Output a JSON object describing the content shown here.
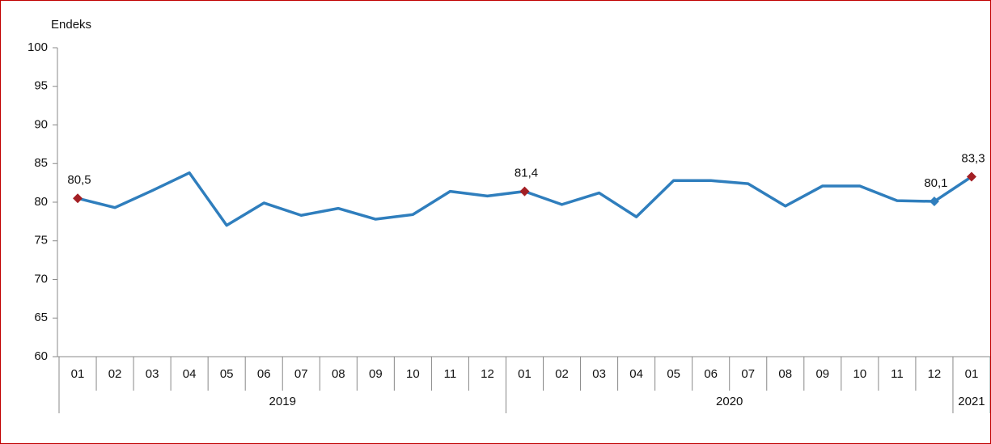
{
  "chart_data": {
    "type": "line",
    "y_axis_label": "Endeks",
    "categories": [
      "01",
      "02",
      "03",
      "04",
      "05",
      "06",
      "07",
      "08",
      "09",
      "10",
      "11",
      "12",
      "01",
      "02",
      "03",
      "04",
      "05",
      "06",
      "07",
      "08",
      "09",
      "10",
      "11",
      "12",
      "01"
    ],
    "x_groups": [
      {
        "label": "2019",
        "count": 12
      },
      {
        "label": "2020",
        "count": 12
      },
      {
        "label": "2021",
        "count": 1
      }
    ],
    "series": [
      {
        "name": "Endeks",
        "color": "#2f7ebd",
        "values": [
          80.5,
          79.3,
          81.5,
          83.8,
          77.0,
          79.9,
          78.3,
          79.2,
          77.8,
          78.4,
          81.4,
          80.8,
          81.4,
          79.7,
          81.2,
          78.1,
          82.8,
          82.8,
          82.4,
          79.5,
          82.1,
          82.1,
          80.2,
          80.1,
          83.3
        ],
        "value_labels": [
          "80,5",
          null,
          null,
          null,
          null,
          null,
          null,
          null,
          null,
          null,
          null,
          null,
          "81,4",
          null,
          null,
          null,
          null,
          null,
          null,
          null,
          null,
          null,
          null,
          "80,1",
          "83,3"
        ],
        "marker_colors": [
          "#a31f24",
          null,
          null,
          null,
          null,
          null,
          null,
          null,
          null,
          null,
          null,
          null,
          "#a31f24",
          null,
          null,
          null,
          null,
          null,
          null,
          null,
          null,
          null,
          null,
          "#2f7ebd",
          "#a31f24"
        ]
      }
    ],
    "ylim": [
      60,
      100
    ],
    "yticks": [
      60,
      65,
      70,
      75,
      80,
      85,
      90,
      95,
      100
    ],
    "grid": false
  }
}
